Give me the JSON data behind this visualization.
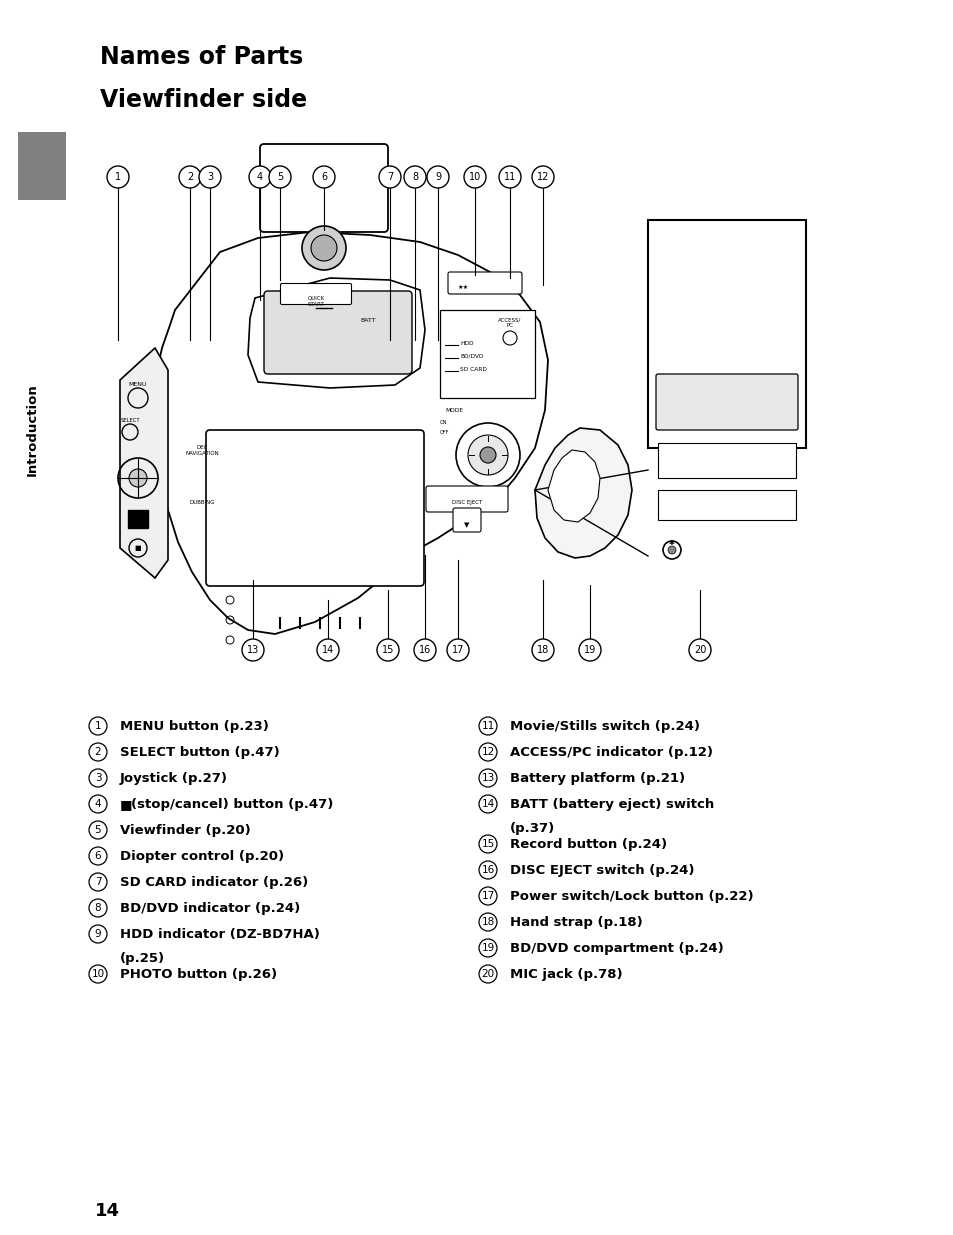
{
  "title1": "Names of Parts",
  "title2": "Viewfinder side",
  "sidebar_text": "Introduction",
  "sidebar_color": "#808080",
  "bg_color": "#ffffff",
  "left_items": [
    {
      "num": 1,
      "text": "MENU button (p.23)"
    },
    {
      "num": 2,
      "text": "SELECT button (p.47)"
    },
    {
      "num": 3,
      "text": "Joystick (p.27)"
    },
    {
      "num": 4,
      "text": "(stop/cancel) button (p.47)",
      "has_square": true
    },
    {
      "num": 5,
      "text": "Viewfinder (p.20)"
    },
    {
      "num": 6,
      "text": "Diopter control (p.20)"
    },
    {
      "num": 7,
      "text": "SD CARD indicator (p.26)"
    },
    {
      "num": 8,
      "text": "BD/DVD indicator (p.24)"
    },
    {
      "num": 9,
      "text": "HDD indicator (DZ-BD7HA)",
      "text2": "(p.25)"
    },
    {
      "num": 10,
      "text": "PHOTO button (p.26)"
    }
  ],
  "right_items": [
    {
      "num": 11,
      "text": "Movie/Stills switch (p.24)"
    },
    {
      "num": 12,
      "text": "ACCESS/PC indicator (p.12)"
    },
    {
      "num": 13,
      "text": "Battery platform (p.21)"
    },
    {
      "num": 14,
      "text": "BATT (battery eject) switch",
      "text2": "(p.37)"
    },
    {
      "num": 15,
      "text": "Record button (p.24)"
    },
    {
      "num": 16,
      "text": "DISC EJECT switch (p.24)"
    },
    {
      "num": 17,
      "text": "Power switch/Lock button (p.22)"
    },
    {
      "num": 18,
      "text": "Hand strap (p.18)"
    },
    {
      "num": 19,
      "text": "BD/DVD compartment (p.24)"
    },
    {
      "num": 20,
      "text": "MIC jack (p.78)"
    }
  ],
  "page_number": "14",
  "title1_fontsize": 17,
  "title2_fontsize": 17,
  "item_fontsize": 9.5,
  "num_fontsize": 7.5
}
